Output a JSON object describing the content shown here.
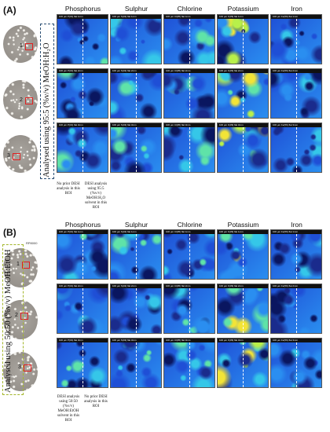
{
  "panelA": {
    "label": "(A)",
    "columns": [
      "Phosphorus",
      "Sulphur",
      "Chlorine",
      "Potassium",
      "Iron"
    ],
    "vertical_label": "Analysed using 95:5 (%v/v) MeOH:H₂O",
    "roi_numbers": [
      "1",
      "2",
      "3"
    ],
    "scalebars": [
      [
        "100 µm  P(31) flat 1mm",
        "100 µm  S(32) flat 1mm",
        "100 µm  Cl(35) flat 1mm",
        "100 µm  K(39) flat 1mm",
        "100 µm  Fe(56) flat 1mm"
      ],
      [
        "100 µm  P(31) flat 2mm",
        "100 µm  S(32) flat 2mm",
        "100 µm  Cl(35) flat 2mm",
        "100 µm  K(39) flat 2mm",
        "100 µm  Fe(56) flat 2mm"
      ],
      [
        "100 µm  P(31) flat 3mm",
        "100 µm  S(32) flat 3mm",
        "100 µm  Cl(35) flat 3mm",
        "100 µm  K(39) flat 3mm",
        "100 µm  Fe(56) flat 3mm"
      ]
    ],
    "caption_left": "No prior DESI analysis in this ROI",
    "caption_right": "DESI analysis using 95:5 (%v/v) MeOH:H₂O solvent in this ROI",
    "colors": {
      "dashbox": "#2a4e73",
      "roi": "#e02020"
    }
  },
  "panelB": {
    "label": "(B)",
    "columns": [
      "Phosphorus",
      "Sulphur",
      "Chlorine",
      "Potassium",
      "Iron"
    ],
    "vertical_label": "Analysed using 50:50 (%v/v) MeOH:EtOH",
    "roi_numbers": [
      "1",
      "2",
      "3"
    ],
    "stamp": "RP8000",
    "scalebars": [
      [
        "100 µm  P(31) flat 1mm",
        "100 µm  S(32) flat 1mm",
        "100 µm  Cl(35) flat 1mm",
        "100 µm  K(39) flat 1mm",
        "100 µm  Fe(56) flat 1mm"
      ],
      [
        "100 µm  P(31) flat 2mm",
        "100 µm  S(32) flat 2mm",
        "100 µm  Cl(35) flat 2mm",
        "100 µm  K(39) flat 2mm",
        "100 µm  Fe(56) flat 2mm"
      ],
      [
        "100 µm  P(31) flat 3mm",
        "100 µm  S(32) flat 3mm",
        "100 µm  Cl(35) flat 3mm",
        "100 µm  K(39) flat 3mm",
        "100 µm  Fe(56) flat 3mm"
      ]
    ],
    "caption_left": "DESI analysis using 50:50 (%v/v) MeOH:EtOH solvent in this ROI",
    "caption_right": "No prior DESI analysis in this ROI",
    "colors": {
      "dashbox": "#a3b62a",
      "roi": "#e02020"
    }
  },
  "colormap": [
    "#1a2b8c",
    "#1f4fd6",
    "#2a8ef0",
    "#35c7e8",
    "#5fe3a8",
    "#b8f04a",
    "#f2e437"
  ]
}
